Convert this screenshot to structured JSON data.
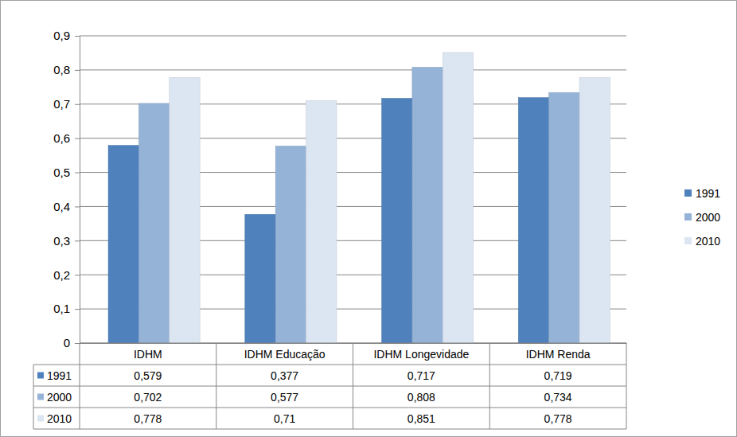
{
  "chart_data": {
    "type": "bar",
    "categories": [
      "IDHM",
      "IDHM Educação",
      "IDHM Longevidade",
      "IDHM Renda"
    ],
    "series": [
      {
        "name": "1991",
        "color": "#4f81bd",
        "values": [
          0.579,
          0.377,
          0.717,
          0.719
        ],
        "value_labels": [
          "0,579",
          "0,377",
          "0,717",
          "0,719"
        ]
      },
      {
        "name": "2000",
        "color": "#95b3d7",
        "values": [
          0.702,
          0.577,
          0.808,
          0.734
        ],
        "value_labels": [
          "0,702",
          "0,577",
          "0,808",
          "0,734"
        ]
      },
      {
        "name": "2010",
        "color": "#dce6f2",
        "values": [
          0.778,
          0.71,
          0.851,
          0.778
        ],
        "value_labels": [
          "0,778",
          "0,71",
          "0,851",
          "0,778"
        ]
      }
    ],
    "ylim": [
      0,
      0.9
    ],
    "yticks": [
      0,
      {
        "value": 0.1,
        "label": "0,1"
      },
      {
        "value": 0.2,
        "label": "0,2"
      },
      {
        "value": 0.3,
        "label": "0,3"
      },
      {
        "value": 0.4,
        "label": "0,4"
      },
      {
        "value": 0.5,
        "label": "0,5"
      },
      {
        "value": 0.6,
        "label": "0,6"
      },
      {
        "value": 0.7,
        "label": "0,7"
      },
      {
        "value": 0.8,
        "label": "0,8"
      },
      {
        "value": 0.9,
        "label": "0,9"
      }
    ],
    "grid": true,
    "legend": "right"
  }
}
